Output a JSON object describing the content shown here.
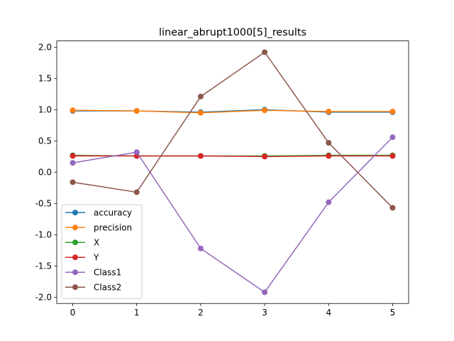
{
  "chart_data": {
    "type": "line",
    "title": "linear_abrupt1000[5]_results",
    "xlabel": "",
    "ylabel": "",
    "x": [
      0,
      1,
      2,
      3,
      4,
      5
    ],
    "xticks": [
      "0",
      "1",
      "2",
      "3",
      "4",
      "5"
    ],
    "yticks": [
      "-2.0",
      "-1.5",
      "-1.0",
      "-0.5",
      "0.0",
      "0.5",
      "1.0",
      "1.5",
      "2.0"
    ],
    "xlim": [
      -0.25,
      5.25
    ],
    "ylim": [
      -2.1,
      2.1
    ],
    "grid": false,
    "legend_position": "lower-left",
    "series": [
      {
        "name": "accuracy",
        "color": "#1f77b4",
        "values": [
          0.98,
          0.98,
          0.96,
          1.0,
          0.96,
          0.96
        ]
      },
      {
        "name": "precision",
        "color": "#ff7f0e",
        "values": [
          0.99,
          0.98,
          0.95,
          0.99,
          0.97,
          0.97
        ]
      },
      {
        "name": "X",
        "color": "#2ca02c",
        "values": [
          0.27,
          0.26,
          0.26,
          0.26,
          0.27,
          0.27
        ]
      },
      {
        "name": "Y",
        "color": "#d62728",
        "values": [
          0.26,
          0.26,
          0.26,
          0.25,
          0.26,
          0.26
        ]
      },
      {
        "name": "Class1",
        "color": "#9467bd",
        "values": [
          0.15,
          0.32,
          -1.22,
          -1.92,
          -0.48,
          0.56
        ]
      },
      {
        "name": "Class2",
        "color": "#8c564b",
        "values": [
          -0.16,
          -0.32,
          1.21,
          1.92,
          0.47,
          -0.57
        ]
      }
    ]
  }
}
